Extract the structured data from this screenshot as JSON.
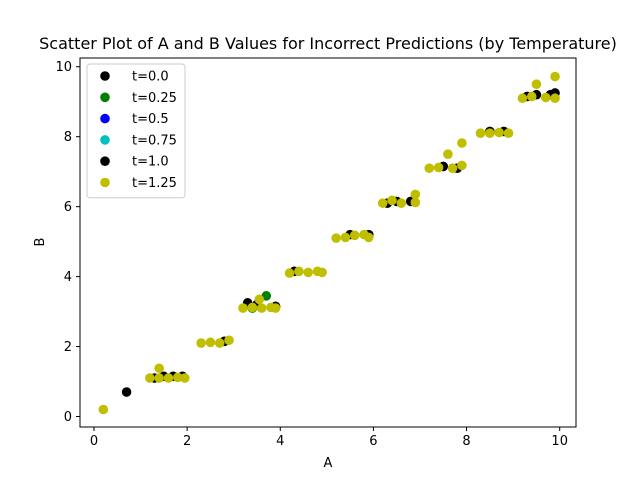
{
  "chart_data": {
    "type": "scatter",
    "title": "Scatter Plot of A and B Values for Incorrect Predictions (by Temperature)",
    "xlabel": "A",
    "ylabel": "B",
    "xlim": [
      -0.3,
      10.35
    ],
    "ylim": [
      -0.3,
      10.25
    ],
    "xticks": [
      0,
      2,
      4,
      6,
      8,
      10
    ],
    "yticks": [
      0,
      2,
      4,
      6,
      8,
      10
    ],
    "legend_position": "top-left",
    "series": [
      {
        "name": "t=0.0",
        "color": "#000000",
        "points": [
          [
            0.7,
            0.7
          ],
          [
            1.3,
            1.1
          ],
          [
            1.5,
            1.15
          ],
          [
            1.9,
            1.15
          ],
          [
            3.3,
            3.25
          ],
          [
            3.5,
            3.2
          ],
          [
            3.9,
            3.15
          ],
          [
            5.5,
            5.2
          ],
          [
            5.9,
            5.2
          ],
          [
            6.5,
            6.15
          ],
          [
            6.8,
            6.15
          ],
          [
            7.5,
            7.15
          ],
          [
            7.8,
            7.1
          ],
          [
            8.8,
            8.15
          ],
          [
            9.5,
            9.2
          ],
          [
            9.9,
            9.25
          ],
          [
            9.8,
            9.2
          ]
        ]
      },
      {
        "name": "t=0.25",
        "color": "#008000",
        "points": [
          [
            3.7,
            3.45
          ],
          [
            3.4,
            3.1
          ]
        ]
      },
      {
        "name": "t=0.5",
        "color": "#0000ff",
        "points": []
      },
      {
        "name": "t=0.75",
        "color": "#00bfbf",
        "points": []
      },
      {
        "name": "t=1.0",
        "color": "#000000",
        "points": [
          [
            1.7,
            1.15
          ],
          [
            2.8,
            2.15
          ],
          [
            4.3,
            4.15
          ],
          [
            6.3,
            6.1
          ],
          [
            8.5,
            8.15
          ],
          [
            9.3,
            9.15
          ]
        ]
      },
      {
        "name": "t=1.25",
        "color": "#bfbf00",
        "points": [
          [
            0.2,
            0.2
          ],
          [
            1.2,
            1.1
          ],
          [
            1.4,
            1.1
          ],
          [
            1.4,
            1.38
          ],
          [
            1.6,
            1.1
          ],
          [
            1.8,
            1.12
          ],
          [
            1.95,
            1.1
          ],
          [
            2.3,
            2.1
          ],
          [
            2.5,
            2.12
          ],
          [
            2.7,
            2.1
          ],
          [
            2.9,
            2.18
          ],
          [
            3.2,
            3.1
          ],
          [
            3.4,
            3.12
          ],
          [
            3.55,
            3.35
          ],
          [
            3.6,
            3.1
          ],
          [
            3.8,
            3.12
          ],
          [
            3.9,
            3.1
          ],
          [
            4.2,
            4.1
          ],
          [
            4.4,
            4.15
          ],
          [
            4.6,
            4.12
          ],
          [
            4.8,
            4.15
          ],
          [
            4.9,
            4.12
          ],
          [
            5.2,
            5.1
          ],
          [
            5.4,
            5.12
          ],
          [
            5.6,
            5.18
          ],
          [
            5.8,
            5.2
          ],
          [
            5.9,
            5.12
          ],
          [
            6.2,
            6.1
          ],
          [
            6.4,
            6.18
          ],
          [
            6.6,
            6.1
          ],
          [
            6.9,
            6.35
          ],
          [
            6.9,
            6.12
          ],
          [
            7.2,
            7.1
          ],
          [
            7.4,
            7.12
          ],
          [
            7.6,
            7.5
          ],
          [
            7.7,
            7.1
          ],
          [
            7.9,
            7.82
          ],
          [
            7.9,
            7.18
          ],
          [
            8.3,
            8.1
          ],
          [
            8.5,
            8.1
          ],
          [
            8.7,
            8.12
          ],
          [
            8.9,
            8.1
          ],
          [
            9.2,
            9.1
          ],
          [
            9.4,
            9.15
          ],
          [
            9.5,
            9.5
          ],
          [
            9.7,
            9.12
          ],
          [
            9.9,
            9.72
          ],
          [
            9.9,
            9.1
          ]
        ]
      }
    ]
  }
}
